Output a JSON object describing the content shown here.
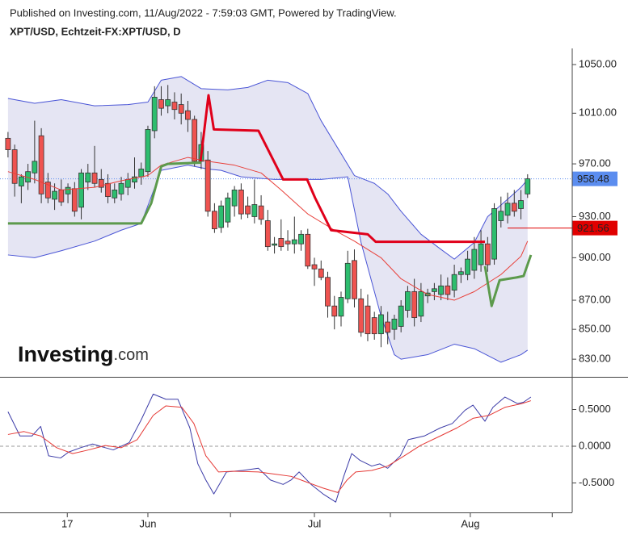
{
  "header": {
    "published": "Published on Investing.com, 11/Aug/2022 - 7:59:03 GMT, Powered by TradingView.",
    "logo": "Investing",
    "logo_suffix": ".com"
  },
  "chart_data": [
    {
      "type": "candlestick",
      "title": "XPT/USD, Echtzeit-FX:XPT/USD, D",
      "log_scale": true,
      "xlim": [
        -1.2,
        84.7
      ],
      "ylim": [
        818.4,
        1063.6
      ],
      "yticks": [
        {
          "value": 1050,
          "label": "1050.00"
        },
        {
          "value": 1010,
          "label": "1010.00"
        },
        {
          "value": 970,
          "label": "970.00"
        },
        {
          "value": 930,
          "label": "930.00"
        },
        {
          "value": 900,
          "label": "900.00"
        },
        {
          "value": 870,
          "label": "870.00"
        },
        {
          "value": 850,
          "label": "850.00"
        },
        {
          "value": 830,
          "label": "830.00"
        }
      ],
      "up_color": "#2dbd6e",
      "down_color": "#ef5350",
      "open": [
        990,
        981,
        953,
        956,
        963,
        992,
        956,
        943,
        950,
        947,
        951,
        937,
        956,
        963,
        958,
        955,
        944,
        947,
        952,
        956,
        960,
        964,
        996,
        1021,
        1016,
        1019,
        1017,
        1012,
        1005,
        972,
        973,
        934,
        922,
        926,
        938,
        950,
        938,
        930,
        938,
        927,
        909,
        914,
        912,
        910,
        910,
        917,
        895,
        892,
        886,
        866,
        859,
        871,
        898,
        871,
        866,
        858,
        847,
        855,
        850,
        852,
        863,
        876,
        859,
        873,
        876,
        874,
        880,
        877,
        888,
        888,
        891,
        895,
        910,
        899,
        927,
        931,
        940,
        936,
        947
      ],
      "high": [
        995,
        985,
        962,
        970,
        1004,
        998,
        963,
        955,
        958,
        955,
        956,
        966,
        970,
        984,
        966,
        962,
        955,
        960,
        963,
        975,
        971,
        1000,
        1032,
        1032,
        1033,
        1027,
        1026,
        1020,
        1008,
        995,
        980,
        940,
        942,
        948,
        953,
        955,
        945,
        958,
        946,
        935,
        915,
        928,
        920,
        930,
        920,
        921,
        900,
        898,
        890,
        873,
        876,
        905,
        906,
        878,
        874,
        862,
        866,
        862,
        860,
        870,
        880,
        885,
        882,
        878,
        882,
        888,
        886,
        895,
        893,
        905,
        915,
        920,
        915,
        940,
        945,
        948,
        950,
        950,
        962
      ],
      "low": [
        975,
        945,
        940,
        950,
        955,
        940,
        940,
        935,
        938,
        940,
        930,
        928,
        950,
        952,
        948,
        940,
        940,
        942,
        946,
        951,
        954,
        960,
        990,
        1008,
        1010,
        1005,
        1001,
        995,
        968,
        966,
        930,
        918,
        918,
        922,
        930,
        928,
        929,
        925,
        924,
        905,
        903,
        905,
        905,
        903,
        905,
        892,
        880,
        884,
        858,
        850,
        852,
        868,
        865,
        845,
        842,
        843,
        838,
        840,
        843,
        848,
        858,
        852,
        855,
        868,
        870,
        870,
        870,
        872,
        882,
        884,
        885,
        890,
        890,
        895,
        922,
        925,
        930,
        928,
        944
      ],
      "close": [
        981,
        955,
        960,
        964,
        972,
        947,
        944,
        949,
        941,
        952,
        934,
        963,
        963,
        955,
        952,
        945,
        950,
        955,
        958,
        960,
        966,
        997,
        1023,
        1014,
        1021,
        1013,
        1010,
        1005,
        972,
        985,
        934,
        921,
        938,
        944,
        950,
        932,
        932,
        939,
        928,
        908,
        910,
        908,
        910,
        913,
        917,
        894,
        892,
        886,
        866,
        859,
        872,
        896,
        871,
        848,
        847,
        847,
        860,
        848,
        857,
        866,
        876,
        858,
        876,
        875,
        878,
        880,
        874,
        888,
        890,
        899,
        906,
        910,
        895,
        936,
        934,
        940,
        934,
        942,
        958.48
      ],
      "band": {
        "color": "#4a55d6",
        "fill": "#e5e5f3",
        "upper": {
          "x": [
            0,
            4,
            8,
            13,
            18,
            21,
            23,
            26,
            29,
            33,
            36,
            39,
            42,
            45,
            47,
            50,
            52,
            55,
            57,
            59,
            62,
            65,
            67,
            70,
            72,
            75,
            77,
            78
          ],
          "values": [
            1022,
            1018,
            1021,
            1016,
            1017,
            1019,
            1037,
            1040,
            1030,
            1029,
            1031,
            1037,
            1035,
            1026,
            1004,
            978,
            961,
            955,
            947,
            934,
            917,
            906,
            899,
            911,
            930,
            943,
            952,
            958
          ]
        },
        "lower": {
          "x": [
            0,
            4,
            8,
            13,
            17,
            20,
            23,
            27,
            30,
            32,
            35,
            40,
            47,
            51,
            53,
            56,
            58,
            59,
            63,
            67,
            70,
            74,
            77,
            78
          ],
          "values": [
            902,
            900,
            905,
            912,
            920,
            925,
            965,
            969,
            966,
            965,
            960,
            958,
            958,
            960,
            911,
            859,
            833,
            830,
            833,
            840,
            837,
            828,
            833,
            836
          ]
        }
      },
      "lines": [
        {
          "color": "#e8403a",
          "width": 1,
          "x": [
            0,
            4,
            8,
            13,
            17,
            21,
            23,
            27,
            30,
            34,
            38,
            41,
            45,
            49,
            52,
            56,
            59,
            63,
            67,
            70,
            74,
            77,
            78
          ],
          "values": [
            964,
            958,
            950,
            952,
            957,
            961,
            969,
            975,
            972,
            969,
            963,
            950,
            932,
            920,
            912,
            900,
            885,
            874,
            870,
            876,
            888,
            901,
            912
          ]
        },
        {
          "color": "#e0001a",
          "width": 3,
          "x": [
            28.9,
            30.1,
            30.9,
            37.6,
            41.3,
            44.9,
            46.1,
            48.5,
            54,
            55.2,
            71.6
          ],
          "values": [
            972,
            1024.6,
            997,
            996,
            958,
            958,
            944,
            920,
            917,
            911.5,
            911.5
          ]
        },
        {
          "color": "#5c9a4c",
          "width": 3,
          "x": [
            0,
            20,
            21.5,
            23,
            24,
            29,
            null,
            71.6,
            72.6,
            73.8,
            76.4,
            77.4,
            78.5
          ],
          "values": [
            925,
            925,
            940,
            968,
            970,
            971,
            null,
            894,
            866,
            884,
            886,
            887,
            902
          ]
        }
      ],
      "price_lines": [
        {
          "value": 958.48,
          "color": "#5b8def",
          "style": "dotted"
        },
        {
          "value": 921.56,
          "color": "#e00000",
          "style": "solid"
        }
      ]
    },
    {
      "type": "line",
      "xlim": [
        -1.2,
        84.7
      ],
      "ylim": [
        -0.901,
        0.912
      ],
      "yticks": [
        {
          "value": 0.5,
          "label": "0.5000"
        },
        {
          "value": 0,
          "label": "0.0000"
        },
        {
          "value": -0.5,
          "label": "-0.5000"
        }
      ],
      "zero_line": true,
      "xticks": [
        {
          "value": 8.9,
          "label": "17"
        },
        {
          "value": 21,
          "label": "Jun"
        },
        {
          "value": 46,
          "label": "Jul"
        },
        {
          "value": 69.4,
          "label": "Aug"
        }
      ],
      "xticks_minor": [
        33.4,
        57.4,
        81.7
      ],
      "lines": [
        {
          "color": "#3c3ca8",
          "width": 1,
          "x": [
            0,
            1.8,
            3.6,
            4.9,
            6.1,
            7.9,
            9.1,
            10.9,
            12.7,
            14.6,
            15.8,
            18.2,
            20,
            21.8,
            23.7,
            25.5,
            27.3,
            28.5,
            29.7,
            30.9,
            32.8,
            35.2,
            37.6,
            39.4,
            41.3,
            42.5,
            43.7,
            45.5,
            47.3,
            49.2,
            50.4,
            51.6,
            52.8,
            54.6,
            55.8,
            57,
            58.9,
            60.1,
            62.5,
            64.9,
            66.7,
            68.6,
            69.8,
            71.6,
            72.8,
            74.6,
            76.5,
            77.4,
            78.5
          ],
          "values": [
            0.47,
            0.14,
            0.14,
            0.27,
            -0.13,
            -0.16,
            -0.08,
            -0.02,
            0.03,
            -0.02,
            -0.05,
            0.05,
            0.36,
            0.71,
            0.64,
            0.64,
            0.25,
            -0.24,
            -0.46,
            -0.65,
            -0.35,
            -0.33,
            -0.3,
            -0.46,
            -0.52,
            -0.46,
            -0.35,
            -0.52,
            -0.65,
            -0.76,
            -0.41,
            -0.1,
            -0.19,
            -0.27,
            -0.24,
            -0.3,
            -0.13,
            0.09,
            0.14,
            0.25,
            0.31,
            0.49,
            0.56,
            0.34,
            0.53,
            0.67,
            0.58,
            0.6,
            0.67
          ]
        },
        {
          "color": "#e53935",
          "width": 1,
          "x": [
            0,
            2.4,
            4.9,
            7.3,
            9.7,
            12.1,
            14.6,
            17,
            19.4,
            21.8,
            23.7,
            26.1,
            27.9,
            29.7,
            31.6,
            34,
            37.6,
            40.1,
            42.5,
            44.9,
            47.3,
            49.5,
            50.9,
            52.2,
            54.6,
            57,
            59.5,
            61.9,
            64.9,
            67.4,
            69.8,
            72.2,
            74.6,
            77.1,
            78.5
          ],
          "values": [
            0.16,
            0.2,
            0.14,
            -0.02,
            -0.1,
            -0.05,
            0.01,
            -0.02,
            0.09,
            0.42,
            0.55,
            0.53,
            0.31,
            -0.13,
            -0.35,
            -0.34,
            -0.35,
            -0.38,
            -0.41,
            -0.49,
            -0.57,
            -0.63,
            -0.46,
            -0.35,
            -0.33,
            -0.27,
            -0.13,
            0.01,
            0.14,
            0.25,
            0.38,
            0.42,
            0.53,
            0.58,
            0.62
          ]
        }
      ]
    }
  ]
}
